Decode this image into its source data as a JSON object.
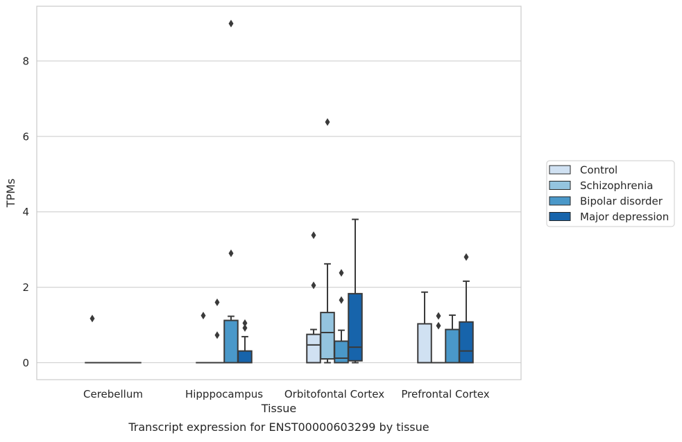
{
  "chart_data": {
    "type": "box",
    "title": "Transcript expression for ENST00000603299 by tissue",
    "xlabel": "Tissue",
    "ylabel": "TPMs",
    "categories": [
      "Cerebellum",
      "Hipppocampus",
      "Orbitofontal Cortex",
      "Prefrontal Cortex"
    ],
    "ylim": [
      -0.45,
      9.45
    ],
    "yticks": [
      0,
      2,
      4,
      6,
      8
    ],
    "ytick_labels": [
      "0",
      "2",
      "4",
      "6",
      "8"
    ],
    "grid": "horizontal",
    "legend_position": "right",
    "legend": [
      "Control",
      "Schizophrenia",
      "Bipolar disorder",
      "Major depression"
    ],
    "series": [
      {
        "name": "Control",
        "color": "#d0e1f2",
        "boxes": [
          {
            "q1": 0,
            "median": 0,
            "q3": 0,
            "whisker_low": 0,
            "whisker_high": 0,
            "outliers": [
              1.17
            ]
          },
          {
            "q1": 0,
            "median": 0,
            "q3": 0,
            "whisker_low": 0,
            "whisker_high": 0,
            "outliers": [
              1.25
            ]
          },
          {
            "q1": 0,
            "median": 0.47,
            "q3": 0.75,
            "whisker_low": 0,
            "whisker_high": 0.88,
            "outliers": [
              2.05,
              3.38
            ]
          },
          {
            "q1": 0,
            "median": 0,
            "q3": 1.03,
            "whisker_low": 0,
            "whisker_high": 1.87,
            "outliers": []
          }
        ]
      },
      {
        "name": "Schizophrenia",
        "color": "#94c4df",
        "boxes": [
          {
            "q1": 0,
            "median": 0,
            "q3": 0,
            "whisker_low": 0,
            "whisker_high": 0,
            "outliers": []
          },
          {
            "q1": 0,
            "median": 0,
            "q3": 0,
            "whisker_low": 0,
            "whisker_high": 0,
            "outliers": [
              0.73,
              1.6
            ]
          },
          {
            "q1": 0.1,
            "median": 0.8,
            "q3": 1.33,
            "whisker_low": 0,
            "whisker_high": 2.62,
            "outliers": [
              6.38
            ]
          },
          {
            "q1": 0,
            "median": 0,
            "q3": 0,
            "whisker_low": 0,
            "whisker_high": 0,
            "outliers": [
              0.98,
              1.24
            ]
          }
        ]
      },
      {
        "name": "Bipolar disorder",
        "color": "#4a98c9",
        "boxes": [
          {
            "q1": 0,
            "median": 0,
            "q3": 0,
            "whisker_low": 0,
            "whisker_high": 0,
            "outliers": []
          },
          {
            "q1": 0,
            "median": 1.12,
            "q3": 1.12,
            "whisker_low": 0,
            "whisker_high": 1.23,
            "outliers": [
              2.9,
              8.99
            ]
          },
          {
            "q1": 0,
            "median": 0.12,
            "q3": 0.57,
            "whisker_low": 0,
            "whisker_high": 0.86,
            "outliers": [
              1.66,
              2.38
            ]
          },
          {
            "q1": 0,
            "median": 0,
            "q3": 0.88,
            "whisker_low": 0,
            "whisker_high": 1.26,
            "outliers": []
          }
        ]
      },
      {
        "name": "Major depression",
        "color": "#1764ab",
        "boxes": [
          {
            "q1": 0,
            "median": 0,
            "q3": 0,
            "whisker_low": 0,
            "whisker_high": 0,
            "outliers": []
          },
          {
            "q1": 0,
            "median": 0,
            "q3": 0.31,
            "whisker_low": 0,
            "whisker_high": 0.69,
            "outliers": [
              0.92,
              1.05
            ]
          },
          {
            "q1": 0.05,
            "median": 0.41,
            "q3": 1.83,
            "whisker_low": 0,
            "whisker_high": 3.8,
            "outliers": []
          },
          {
            "q1": 0,
            "median": 0.31,
            "q3": 1.08,
            "whisker_low": 0,
            "whisker_high": 2.16,
            "outliers": [
              2.8
            ]
          }
        ]
      }
    ]
  }
}
